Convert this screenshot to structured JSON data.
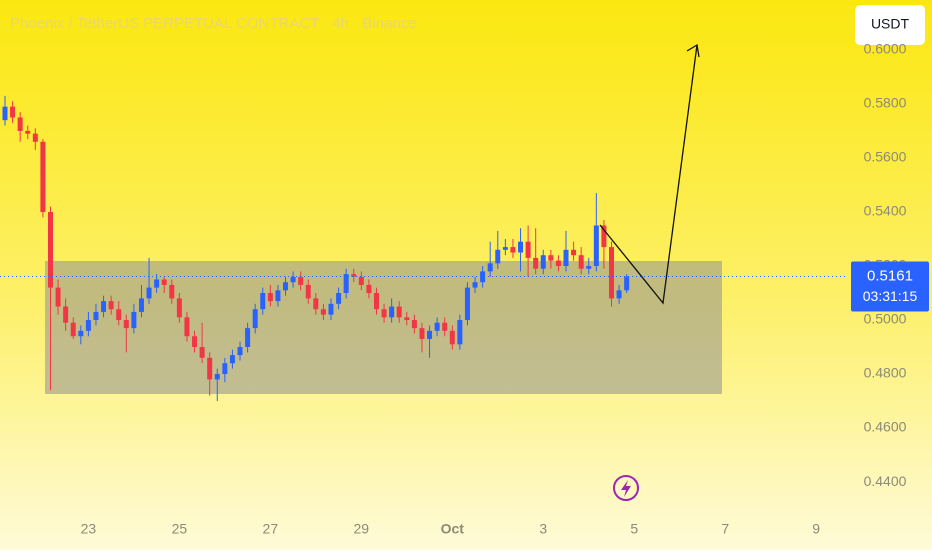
{
  "chart_data": {
    "type": "candlestick",
    "title": "Phoenix / TetherUS PERPETUAL CONTRACT · 4h · Binance",
    "currency": "USDT",
    "countdown": "03:31:15",
    "up_color": "#2962ff",
    "down_color": "#f23645",
    "open": [
      0.574,
      0.579,
      0.575,
      0.57,
      0.569,
      0.566,
      0.54,
      0.512,
      0.505,
      0.499,
      0.494,
      0.496,
      0.5,
      0.503,
      0.507,
      0.504,
      0.5,
      0.497,
      0.503,
      0.508,
      0.512,
      0.515,
      0.513,
      0.508,
      0.501,
      0.494,
      0.49,
      0.486,
      0.478,
      0.48,
      0.484,
      0.487,
      0.49,
      0.497,
      0.504,
      0.51,
      0.507,
      0.511,
      0.514,
      0.516,
      0.513,
      0.508,
      0.504,
      0.502,
      0.506,
      0.51,
      0.517,
      0.516,
      0.513,
      0.51,
      0.504,
      0.501,
      0.505,
      0.501,
      0.5,
      0.497,
      0.493,
      0.496,
      0.499,
      0.496,
      0.491,
      0.5,
      0.512,
      0.514,
      0.518,
      0.521,
      0.526,
      0.527,
      0.525,
      0.529,
      0.523,
      0.519,
      0.524,
      0.522,
      0.52,
      0.526,
      0.524,
      0.519,
      0.52,
      0.535,
      0.527,
      0.508,
      0.511
    ],
    "high": [
      0.583,
      0.581,
      0.577,
      0.572,
      0.571,
      0.567,
      0.542,
      0.515,
      0.508,
      0.501,
      0.498,
      0.503,
      0.506,
      0.509,
      0.509,
      0.507,
      0.502,
      0.506,
      0.513,
      0.523,
      0.517,
      0.516,
      0.515,
      0.51,
      0.503,
      0.496,
      0.499,
      0.488,
      0.482,
      0.486,
      0.489,
      0.492,
      0.499,
      0.506,
      0.512,
      0.513,
      0.513,
      0.516,
      0.518,
      0.518,
      0.515,
      0.51,
      0.506,
      0.508,
      0.512,
      0.519,
      0.519,
      0.518,
      0.515,
      0.512,
      0.506,
      0.508,
      0.507,
      0.503,
      0.502,
      0.499,
      0.498,
      0.501,
      0.501,
      0.498,
      0.502,
      0.514,
      0.516,
      0.52,
      0.529,
      0.533,
      0.53,
      0.53,
      0.534,
      0.535,
      0.534,
      0.526,
      0.526,
      0.524,
      0.533,
      0.529,
      0.527,
      0.523,
      0.547,
      0.537,
      0.529,
      0.513,
      0.517
    ],
    "low": [
      0.572,
      0.573,
      0.566,
      0.567,
      0.563,
      0.538,
      0.474,
      0.502,
      0.496,
      0.493,
      0.491,
      0.494,
      0.498,
      0.501,
      0.502,
      0.498,
      0.488,
      0.495,
      0.501,
      0.506,
      0.51,
      0.51,
      0.506,
      0.499,
      0.492,
      0.488,
      0.484,
      0.472,
      0.47,
      0.477,
      0.482,
      0.485,
      0.488,
      0.495,
      0.502,
      0.505,
      0.505,
      0.509,
      0.512,
      0.511,
      0.506,
      0.502,
      0.5,
      0.5,
      0.504,
      0.508,
      0.514,
      0.511,
      0.508,
      0.502,
      0.499,
      0.499,
      0.499,
      0.498,
      0.495,
      0.488,
      0.486,
      0.494,
      0.494,
      0.489,
      0.489,
      0.498,
      0.51,
      0.512,
      0.516,
      0.519,
      0.524,
      0.523,
      0.518,
      0.516,
      0.517,
      0.517,
      0.519,
      0.518,
      0.518,
      0.522,
      0.517,
      0.517,
      0.518,
      0.519,
      0.505,
      0.506,
      0.51
    ],
    "close": [
      0.579,
      0.575,
      0.57,
      0.569,
      0.566,
      0.54,
      0.512,
      0.505,
      0.499,
      0.494,
      0.496,
      0.5,
      0.503,
      0.507,
      0.504,
      0.5,
      0.497,
      0.503,
      0.508,
      0.512,
      0.515,
      0.513,
      0.508,
      0.501,
      0.494,
      0.49,
      0.486,
      0.478,
      0.48,
      0.484,
      0.487,
      0.49,
      0.497,
      0.504,
      0.51,
      0.507,
      0.511,
      0.514,
      0.516,
      0.513,
      0.508,
      0.504,
      0.502,
      0.506,
      0.51,
      0.517,
      0.516,
      0.513,
      0.51,
      0.504,
      0.501,
      0.505,
      0.501,
      0.5,
      0.497,
      0.493,
      0.496,
      0.499,
      0.496,
      0.491,
      0.5,
      0.512,
      0.514,
      0.518,
      0.521,
      0.526,
      0.527,
      0.525,
      0.529,
      0.523,
      0.519,
      0.524,
      0.522,
      0.52,
      0.526,
      0.524,
      0.519,
      0.52,
      0.535,
      0.527,
      0.508,
      0.511,
      0.5161
    ],
    "ylim": [
      0.4278,
      0.6185
    ],
    "yticks": [
      {
        "value": 0.6,
        "label": "0.6000"
      },
      {
        "value": 0.58,
        "label": "0.5800"
      },
      {
        "value": 0.56,
        "label": "0.5600"
      },
      {
        "value": 0.54,
        "label": "0.5400"
      },
      {
        "value": 0.52,
        "label": "0.5200"
      },
      {
        "value": 0.5,
        "label": "0.5000"
      },
      {
        "value": 0.48,
        "label": "0.4800"
      },
      {
        "value": 0.46,
        "label": "0.4600"
      },
      {
        "value": 0.44,
        "label": "0.4400"
      }
    ],
    "xlim": [
      -0.66,
      110.8
    ],
    "xticks": [
      {
        "value": 11,
        "label": "23"
      },
      {
        "value": 23,
        "label": "25"
      },
      {
        "value": 35,
        "label": "27"
      },
      {
        "value": 47,
        "label": "29"
      },
      {
        "value": 59,
        "label": "Oct"
      },
      {
        "value": 71,
        "label": "3"
      },
      {
        "value": 83,
        "label": "5"
      },
      {
        "value": 95,
        "label": "7"
      },
      {
        "value": 107,
        "label": "9"
      }
    ]
  }
}
